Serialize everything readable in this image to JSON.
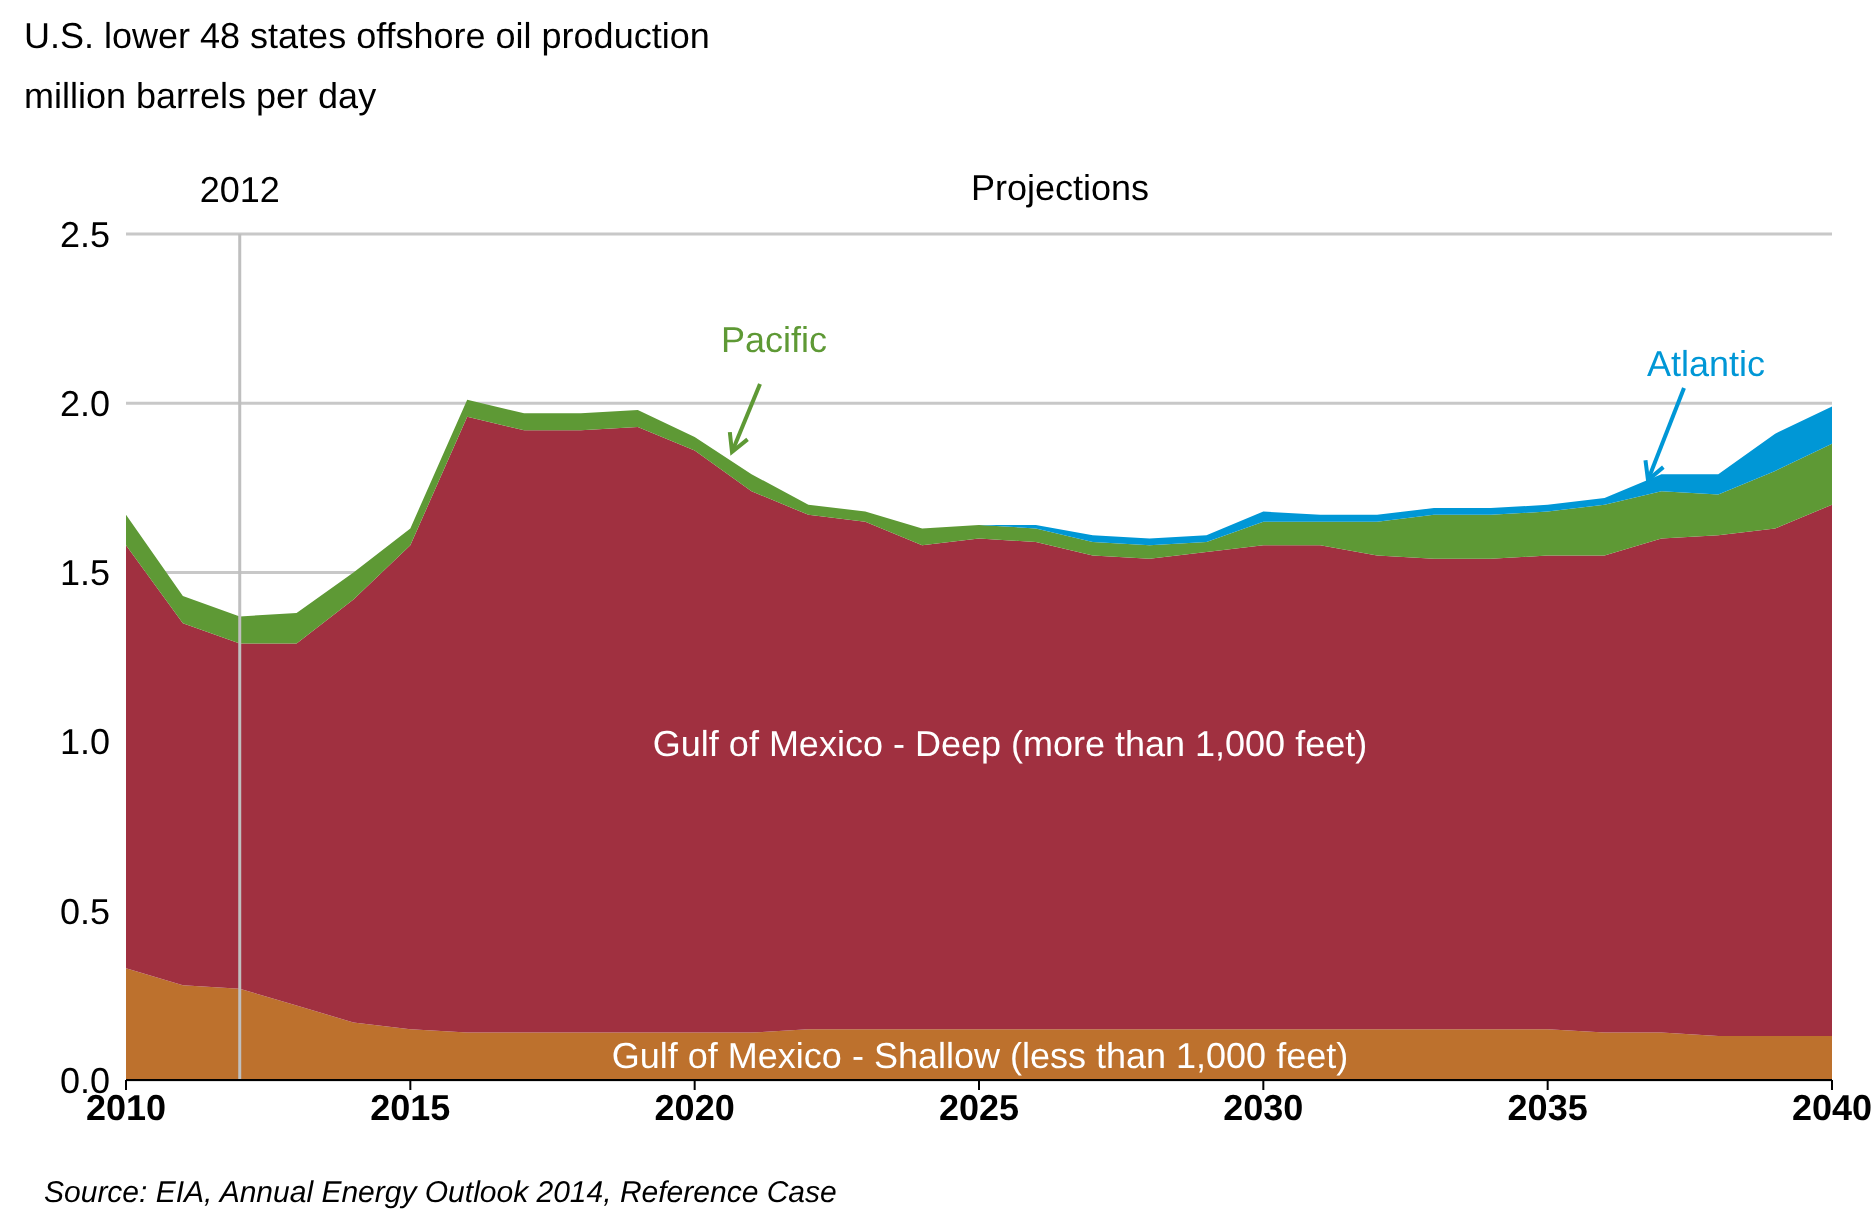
{
  "chart_data": {
    "type": "area",
    "stacked": true,
    "title": "U.S. lower 48 states offshore oil production",
    "ylabel": "million barrels per day",
    "x": [
      2010,
      2011,
      2012,
      2013,
      2014,
      2015,
      2016,
      2017,
      2018,
      2019,
      2020,
      2021,
      2022,
      2023,
      2024,
      2025,
      2026,
      2027,
      2028,
      2029,
      2030,
      2031,
      2032,
      2033,
      2034,
      2035,
      2036,
      2037,
      2038,
      2039,
      2040
    ],
    "series": [
      {
        "name": "Gulf of Mexico - Shallow (less than 1,000 feet)",
        "color": "#bd712d",
        "values": [
          0.33,
          0.28,
          0.27,
          0.22,
          0.17,
          0.15,
          0.14,
          0.14,
          0.14,
          0.14,
          0.14,
          0.14,
          0.15,
          0.15,
          0.15,
          0.15,
          0.15,
          0.15,
          0.15,
          0.15,
          0.15,
          0.15,
          0.15,
          0.15,
          0.15,
          0.15,
          0.14,
          0.14,
          0.13,
          0.13,
          0.13
        ]
      },
      {
        "name": "Gulf of Mexico - Deep (more than 1,000 feet)",
        "color": "#a03040",
        "values": [
          1.25,
          1.07,
          1.02,
          1.07,
          1.25,
          1.43,
          1.82,
          1.78,
          1.78,
          1.79,
          1.72,
          1.6,
          1.52,
          1.5,
          1.43,
          1.45,
          1.44,
          1.4,
          1.39,
          1.41,
          1.43,
          1.43,
          1.4,
          1.39,
          1.39,
          1.4,
          1.41,
          1.46,
          1.48,
          1.5,
          1.57
        ]
      },
      {
        "name": "Pacific",
        "color": "#5e9935",
        "values": [
          0.09,
          0.08,
          0.08,
          0.09,
          0.08,
          0.05,
          0.05,
          0.05,
          0.05,
          0.05,
          0.04,
          0.05,
          0.03,
          0.03,
          0.05,
          0.04,
          0.04,
          0.04,
          0.04,
          0.03,
          0.07,
          0.07,
          0.1,
          0.13,
          0.13,
          0.13,
          0.15,
          0.14,
          0.12,
          0.17,
          0.18
        ]
      },
      {
        "name": "Atlantic",
        "color": "#0097d6",
        "values": [
          0,
          0,
          0,
          0,
          0,
          0,
          0,
          0,
          0,
          0,
          0,
          0,
          0,
          0,
          0,
          0,
          0.01,
          0.02,
          0.02,
          0.02,
          0.03,
          0.02,
          0.02,
          0.02,
          0.02,
          0.02,
          0.02,
          0.05,
          0.06,
          0.11,
          0.11
        ]
      }
    ],
    "xlim": [
      2010,
      2040
    ],
    "xticks": [
      2010,
      2015,
      2020,
      2025,
      2030,
      2035,
      2040
    ],
    "ylim": [
      0,
      2.5
    ],
    "yticks": [
      {
        "value": 0,
        "label": "0.0"
      },
      0.5,
      {
        "value": 1,
        "label": "1.0"
      },
      1.5,
      {
        "value": 2,
        "label": "2.0"
      },
      2.5
    ],
    "grid": "y",
    "ref_lines": [
      {
        "axis": "x",
        "value": 2012,
        "label": "2012",
        "color": "#bfbfbf"
      }
    ],
    "annotations": [
      "Projections",
      "Source:  EIA, Annual Energy Outlook 2014, Reference Case"
    ]
  }
}
